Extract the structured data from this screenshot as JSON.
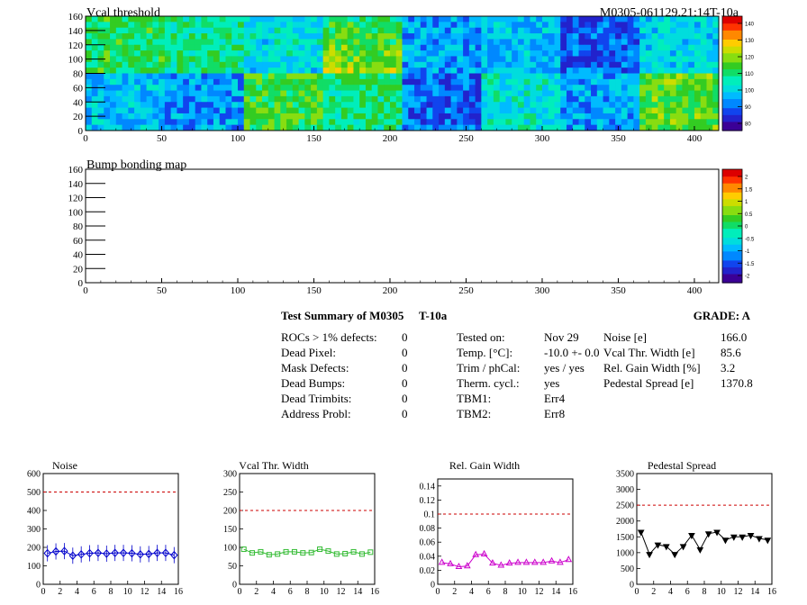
{
  "heatmap1": {
    "title": "Vcal threshold",
    "module_label": "M0305-061129.21:14T-10a",
    "palette_labels": [
      "140",
      "130",
      "120",
      "110",
      "100",
      "90",
      "80"
    ]
  },
  "heatmap2": {
    "title": "Bump bonding map",
    "palette_labels": [
      "2",
      "1.5",
      "1",
      "0.5",
      "0",
      "-0.5",
      "-1",
      "-1.5",
      "-2"
    ]
  },
  "map_axes": {
    "x_ticks": [
      "0",
      "50",
      "100",
      "150",
      "200",
      "250",
      "300",
      "350",
      "400"
    ],
    "y_ticks": [
      "0",
      "20",
      "40",
      "60",
      "80",
      "100",
      "120",
      "140",
      "160"
    ]
  },
  "summary": {
    "title": "Test Summary of M0305",
    "test": "T-10a",
    "grade": "GRADE:  A",
    "defects": [
      {
        "label": "ROCs > 1% defects:",
        "value": "0"
      },
      {
        "label": "Dead Pixel:",
        "value": "0"
      },
      {
        "label": "Mask Defects:",
        "value": "0"
      },
      {
        "label": "Dead Bumps:",
        "value": "0"
      },
      {
        "label": "Dead Trimbits:",
        "value": "0"
      },
      {
        "label": "Address Probl:",
        "value": "0"
      }
    ],
    "conditions": [
      {
        "label": "Tested on:",
        "value": "Nov 29"
      },
      {
        "label": "Temp. [°C]:",
        "value": "-10.0 +- 0.0"
      },
      {
        "label": "Trim / phCal:",
        "value": "yes / yes"
      },
      {
        "label": "Therm. cycl.:",
        "value": "yes"
      },
      {
        "label": "TBM1:",
        "value": "Err4"
      },
      {
        "label": "TBM2:",
        "value": "Err8"
      }
    ],
    "results": [
      {
        "label": "Noise [e]",
        "value": "166.0"
      },
      {
        "label": "Vcal Thr. Width [e]",
        "value": "85.6"
      },
      {
        "label": "Rel. Gain Width [%]",
        "value": "3.2"
      },
      {
        "label": "Pedestal Spread [e]",
        "value": "1370.8"
      }
    ]
  },
  "chart_data": [
    {
      "type": "heatmap",
      "title": "Vcal threshold",
      "xlim": [
        0,
        416
      ],
      "ylim": [
        0,
        160
      ],
      "zlim": [
        80,
        145
      ],
      "layout": "2 rows x 8 ROCs",
      "roc_mean_top": [
        113,
        110,
        104,
        118,
        97,
        100,
        92,
        103
      ],
      "roc_mean_bottom": [
        100,
        97,
        116,
        112,
        93,
        105,
        98,
        118
      ]
    },
    {
      "type": "heatmap",
      "title": "Bump bonding map",
      "xlim": [
        0,
        416
      ],
      "ylim": [
        0,
        160
      ],
      "zlim": [
        -2,
        2
      ],
      "values": []
    },
    {
      "type": "line",
      "title": "Noise",
      "x": [
        0,
        1,
        2,
        3,
        4,
        5,
        6,
        7,
        8,
        9,
        10,
        11,
        12,
        13,
        14,
        15
      ],
      "values": [
        168,
        178,
        180,
        155,
        162,
        168,
        170,
        166,
        170,
        170,
        168,
        162,
        164,
        170,
        170,
        158
      ],
      "marker": "diamond",
      "color": "#0000cc",
      "reference_line": 500,
      "xlim": [
        0,
        16
      ],
      "ylim": [
        0,
        600
      ],
      "y_ticks": [
        "0",
        "100",
        "200",
        "300",
        "400",
        "500",
        "600"
      ],
      "x_ticks": [
        "0",
        "2",
        "4",
        "6",
        "8",
        "10",
        "12",
        "14",
        "16"
      ]
    },
    {
      "type": "line",
      "title": "Vcal Thr. Width",
      "x": [
        0,
        1,
        2,
        3,
        4,
        5,
        6,
        7,
        8,
        9,
        10,
        11,
        12,
        13,
        14,
        15
      ],
      "values": [
        95,
        85,
        88,
        80,
        82,
        88,
        88,
        85,
        86,
        95,
        90,
        82,
        83,
        88,
        82,
        87
      ],
      "marker": "square",
      "color": "#33bb33",
      "reference_line": 200,
      "xlim": [
        0,
        16
      ],
      "ylim": [
        0,
        300
      ],
      "y_ticks": [
        "0",
        "50",
        "100",
        "150",
        "200",
        "250",
        "300"
      ],
      "x_ticks": [
        "0",
        "2",
        "4",
        "6",
        "8",
        "10",
        "12",
        "14",
        "16"
      ]
    },
    {
      "type": "line",
      "title": "Rel. Gain Width",
      "x": [
        0,
        1,
        2,
        3,
        4,
        5,
        6,
        7,
        8,
        9,
        10,
        11,
        12,
        13,
        14,
        15
      ],
      "values": [
        0.031,
        0.029,
        0.025,
        0.026,
        0.042,
        0.043,
        0.03,
        0.027,
        0.03,
        0.031,
        0.031,
        0.031,
        0.031,
        0.033,
        0.031,
        0.035
      ],
      "marker": "triangle",
      "color": "#cc00cc",
      "reference_line": 0.1,
      "xlim": [
        0,
        16
      ],
      "ylim": [
        0,
        0.15
      ],
      "y_ticks": [
        "0",
        "0.02",
        "0.04",
        "0.06",
        "0.08",
        "0.1",
        "0.12",
        "0.14"
      ],
      "x_ticks": [
        "0",
        "2",
        "4",
        "6",
        "8",
        "10",
        "12",
        "14",
        "16"
      ]
    },
    {
      "type": "line",
      "title": "Pedestal Spread",
      "x": [
        0,
        1,
        2,
        3,
        4,
        5,
        6,
        7,
        8,
        9,
        10,
        11,
        12,
        13,
        14,
        15
      ],
      "values": [
        1650,
        950,
        1250,
        1200,
        950,
        1200,
        1550,
        1100,
        1600,
        1650,
        1400,
        1500,
        1500,
        1550,
        1450,
        1400
      ],
      "marker": "triangle-down",
      "color": "#000000",
      "reference_line": 2500,
      "xlim": [
        0,
        16
      ],
      "ylim": [
        0,
        3500
      ],
      "y_ticks": [
        "0",
        "500",
        "1000",
        "1500",
        "2000",
        "2500",
        "3000",
        "3500"
      ],
      "x_ticks": [
        "0",
        "2",
        "4",
        "6",
        "8",
        "10",
        "12",
        "14",
        "16"
      ]
    }
  ]
}
